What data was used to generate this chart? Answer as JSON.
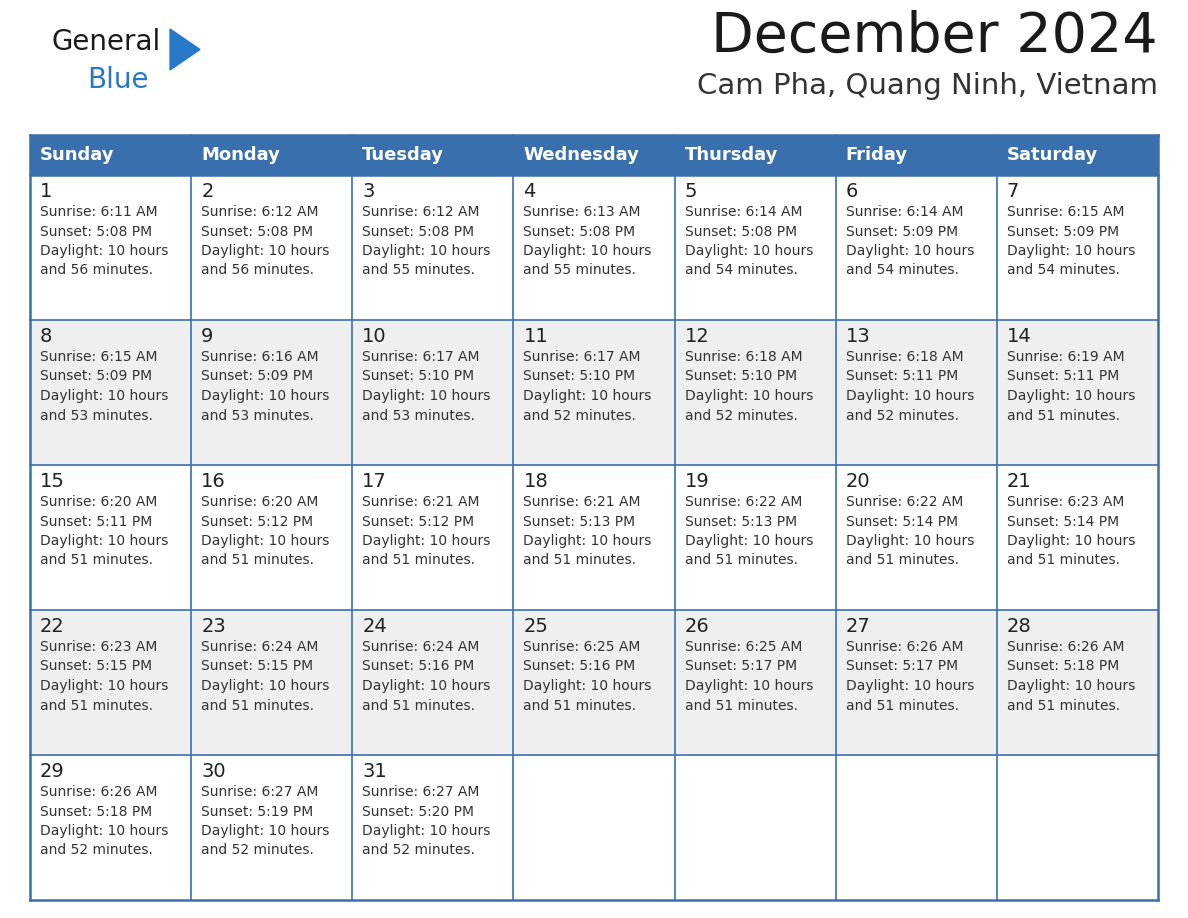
{
  "title": "December 2024",
  "subtitle": "Cam Pha, Quang Ninh, Vietnam",
  "days_of_week": [
    "Sunday",
    "Monday",
    "Tuesday",
    "Wednesday",
    "Thursday",
    "Friday",
    "Saturday"
  ],
  "header_bg": "#3a6fad",
  "header_text_color": "#FFFFFF",
  "cell_bg_white": "#FFFFFF",
  "cell_bg_gray": "#EFEFEF",
  "title_color": "#1a1a1a",
  "subtitle_color": "#333333",
  "day_num_color": "#222222",
  "cell_text_color": "#333333",
  "grid_color": "#3a6fad",
  "logo_general_color": "#1a1a1a",
  "logo_blue_color": "#2878c8",
  "calendar_data": [
    [
      {
        "day": 1,
        "sunrise": "6:11 AM",
        "sunset": "5:08 PM",
        "daylight_min": "56"
      },
      {
        "day": 2,
        "sunrise": "6:12 AM",
        "sunset": "5:08 PM",
        "daylight_min": "56"
      },
      {
        "day": 3,
        "sunrise": "6:12 AM",
        "sunset": "5:08 PM",
        "daylight_min": "55"
      },
      {
        "day": 4,
        "sunrise": "6:13 AM",
        "sunset": "5:08 PM",
        "daylight_min": "55"
      },
      {
        "day": 5,
        "sunrise": "6:14 AM",
        "sunset": "5:08 PM",
        "daylight_min": "54"
      },
      {
        "day": 6,
        "sunrise": "6:14 AM",
        "sunset": "5:09 PM",
        "daylight_min": "54"
      },
      {
        "day": 7,
        "sunrise": "6:15 AM",
        "sunset": "5:09 PM",
        "daylight_min": "54"
      }
    ],
    [
      {
        "day": 8,
        "sunrise": "6:15 AM",
        "sunset": "5:09 PM",
        "daylight_min": "53"
      },
      {
        "day": 9,
        "sunrise": "6:16 AM",
        "sunset": "5:09 PM",
        "daylight_min": "53"
      },
      {
        "day": 10,
        "sunrise": "6:17 AM",
        "sunset": "5:10 PM",
        "daylight_min": "53"
      },
      {
        "day": 11,
        "sunrise": "6:17 AM",
        "sunset": "5:10 PM",
        "daylight_min": "52"
      },
      {
        "day": 12,
        "sunrise": "6:18 AM",
        "sunset": "5:10 PM",
        "daylight_min": "52"
      },
      {
        "day": 13,
        "sunrise": "6:18 AM",
        "sunset": "5:11 PM",
        "daylight_min": "52"
      },
      {
        "day": 14,
        "sunrise": "6:19 AM",
        "sunset": "5:11 PM",
        "daylight_min": "51"
      }
    ],
    [
      {
        "day": 15,
        "sunrise": "6:20 AM",
        "sunset": "5:11 PM",
        "daylight_min": "51"
      },
      {
        "day": 16,
        "sunrise": "6:20 AM",
        "sunset": "5:12 PM",
        "daylight_min": "51"
      },
      {
        "day": 17,
        "sunrise": "6:21 AM",
        "sunset": "5:12 PM",
        "daylight_min": "51"
      },
      {
        "day": 18,
        "sunrise": "6:21 AM",
        "sunset": "5:13 PM",
        "daylight_min": "51"
      },
      {
        "day": 19,
        "sunrise": "6:22 AM",
        "sunset": "5:13 PM",
        "daylight_min": "51"
      },
      {
        "day": 20,
        "sunrise": "6:22 AM",
        "sunset": "5:14 PM",
        "daylight_min": "51"
      },
      {
        "day": 21,
        "sunrise": "6:23 AM",
        "sunset": "5:14 PM",
        "daylight_min": "51"
      }
    ],
    [
      {
        "day": 22,
        "sunrise": "6:23 AM",
        "sunset": "5:15 PM",
        "daylight_min": "51"
      },
      {
        "day": 23,
        "sunrise": "6:24 AM",
        "sunset": "5:15 PM",
        "daylight_min": "51"
      },
      {
        "day": 24,
        "sunrise": "6:24 AM",
        "sunset": "5:16 PM",
        "daylight_min": "51"
      },
      {
        "day": 25,
        "sunrise": "6:25 AM",
        "sunset": "5:16 PM",
        "daylight_min": "51"
      },
      {
        "day": 26,
        "sunrise": "6:25 AM",
        "sunset": "5:17 PM",
        "daylight_min": "51"
      },
      {
        "day": 27,
        "sunrise": "6:26 AM",
        "sunset": "5:17 PM",
        "daylight_min": "51"
      },
      {
        "day": 28,
        "sunrise": "6:26 AM",
        "sunset": "5:18 PM",
        "daylight_min": "51"
      }
    ],
    [
      {
        "day": 29,
        "sunrise": "6:26 AM",
        "sunset": "5:18 PM",
        "daylight_min": "52"
      },
      {
        "day": 30,
        "sunrise": "6:27 AM",
        "sunset": "5:19 PM",
        "daylight_min": "52"
      },
      {
        "day": 31,
        "sunrise": "6:27 AM",
        "sunset": "5:20 PM",
        "daylight_min": "52"
      },
      null,
      null,
      null,
      null
    ]
  ]
}
